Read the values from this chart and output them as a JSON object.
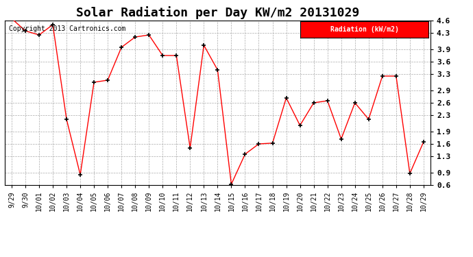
{
  "title": "Solar Radiation per Day KW/m2 20131029",
  "copyright": "Copyright 2013 Cartronics.com",
  "legend_label": "Radiation (kW/m2)",
  "dates": [
    "9/29",
    "9/30",
    "10/01",
    "10/02",
    "10/03",
    "10/04",
    "10/05",
    "10/06",
    "10/07",
    "10/08",
    "10/09",
    "10/10",
    "10/11",
    "10/12",
    "10/13",
    "10/14",
    "10/15",
    "10/16",
    "10/17",
    "10/18",
    "10/19",
    "10/20",
    "10/21",
    "10/22",
    "10/23",
    "10/24",
    "10/25",
    "10/26",
    "10/27",
    "10/28",
    "10/29"
  ],
  "values": [
    4.65,
    4.35,
    4.25,
    4.5,
    2.2,
    0.85,
    3.1,
    3.15,
    3.95,
    4.2,
    4.25,
    3.75,
    3.75,
    1.5,
    4.0,
    3.4,
    0.62,
    1.35,
    1.6,
    1.62,
    2.72,
    2.05,
    2.6,
    2.65,
    1.72,
    2.6,
    2.2,
    3.25,
    3.25,
    0.88,
    1.65
  ],
  "ylim": [
    0.6,
    4.6
  ],
  "yticks": [
    0.6,
    0.9,
    1.3,
    1.6,
    1.9,
    2.3,
    2.6,
    2.9,
    3.3,
    3.6,
    3.9,
    4.3,
    4.6
  ],
  "line_color": "red",
  "marker_color": "black",
  "bg_color": "#ffffff",
  "grid_color": "#aaaaaa",
  "legend_bg": "red",
  "legend_text_color": "white",
  "title_fontsize": 13,
  "tick_fontsize": 7,
  "copyright_fontsize": 7
}
